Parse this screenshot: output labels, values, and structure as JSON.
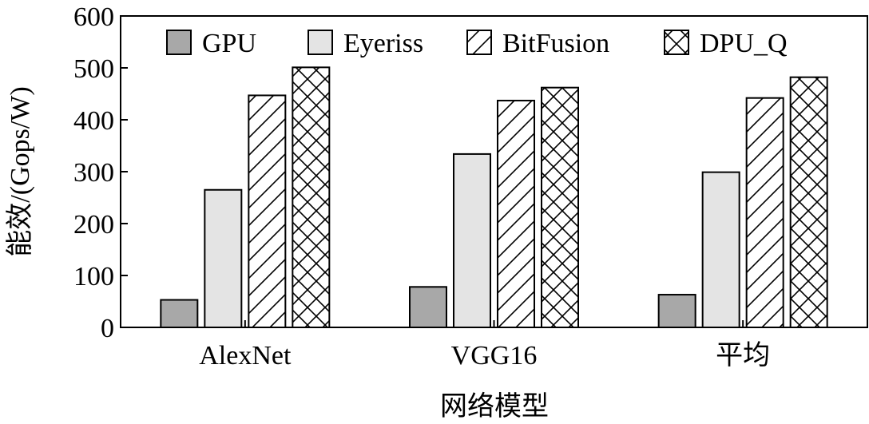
{
  "chart_data": {
    "type": "bar",
    "categories": [
      "AlexNet",
      "VGG16",
      "平均"
    ],
    "series": [
      {
        "name": "GPU",
        "values": [
          53,
          78,
          63
        ],
        "color": "#a8a8a8",
        "pattern": "solid-dark"
      },
      {
        "name": "Eyeriss",
        "values": [
          265,
          334,
          299
        ],
        "color": "#e4e4e4",
        "pattern": "solid-light"
      },
      {
        "name": "BitFusion",
        "values": [
          447,
          437,
          442
        ],
        "color": "#ffffff",
        "pattern": "diagonal"
      },
      {
        "name": "DPU_Q",
        "values": [
          501,
          462,
          482
        ],
        "color": "#ffffff",
        "pattern": "crosshatch"
      }
    ],
    "ylabel": "能效/(Gops/W)",
    "xlabel": "网络模型",
    "ylim": [
      0,
      600
    ],
    "yticks": [
      0,
      100,
      200,
      300,
      400,
      500,
      600
    ],
    "legend_position": "top",
    "grid": false
  }
}
